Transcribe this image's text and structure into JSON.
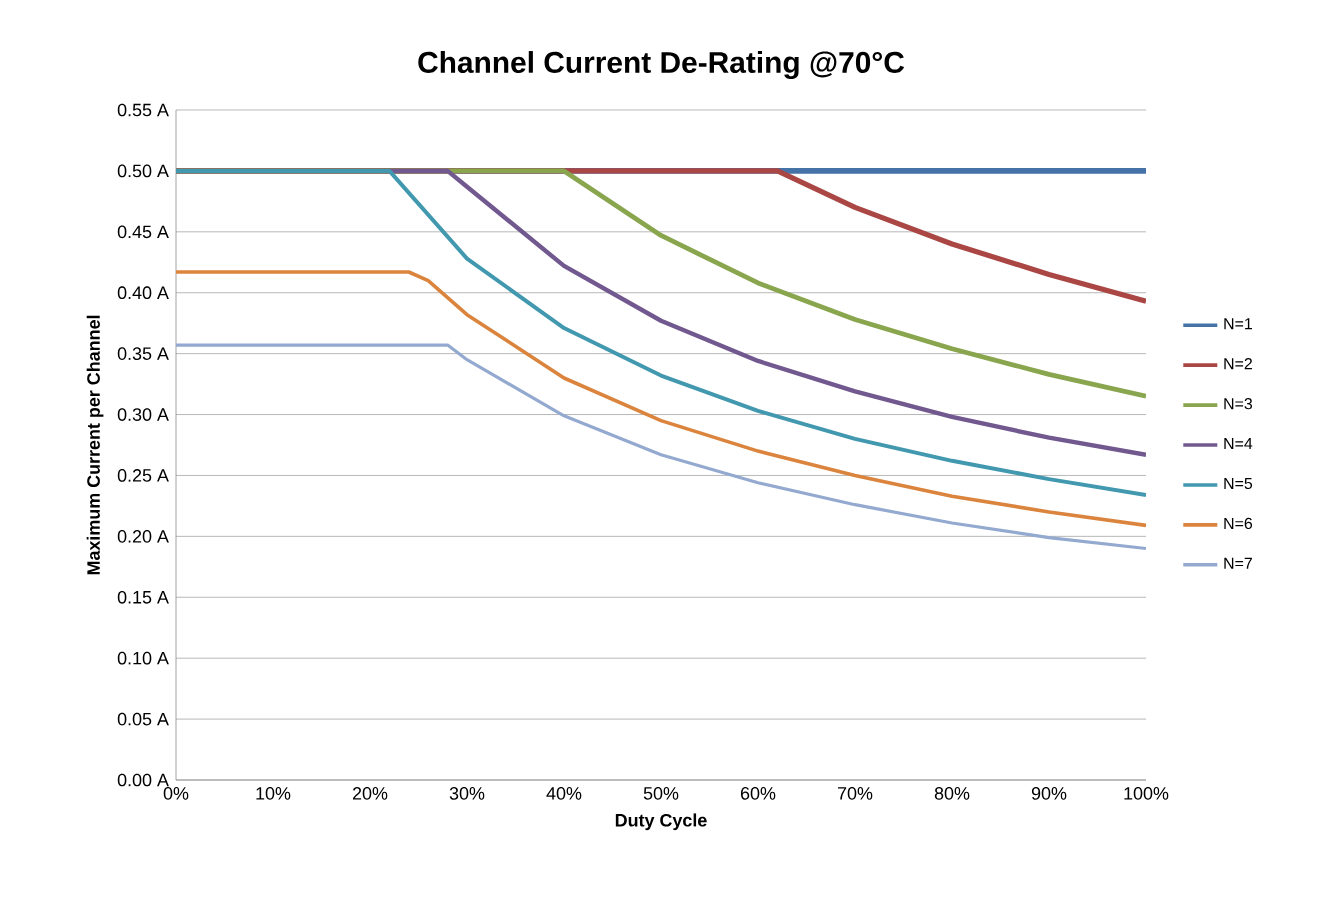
{
  "chart_data": {
    "type": "line",
    "title": "Channel Current De-Rating @70°C",
    "xlabel": "Duty Cycle",
    "ylabel": "Maximum Current per Channel",
    "xlim": [
      0,
      100
    ],
    "ylim": [
      0,
      0.55
    ],
    "xticks": [
      {
        "value": 0,
        "label": "0%"
      },
      {
        "value": 10,
        "label": "10%"
      },
      {
        "value": 20,
        "label": "20%"
      },
      {
        "value": 30,
        "label": "30%"
      },
      {
        "value": 40,
        "label": "40%"
      },
      {
        "value": 50,
        "label": "50%"
      },
      {
        "value": 60,
        "label": "60%"
      },
      {
        "value": 70,
        "label": "70%"
      },
      {
        "value": 80,
        "label": "80%"
      },
      {
        "value": 90,
        "label": "90%"
      },
      {
        "value": 100,
        "label": "100%"
      }
    ],
    "yticks": [
      {
        "value": 0,
        "label": "0.00 A"
      },
      {
        "value": 0.05,
        "label": "0.05 A"
      },
      {
        "value": 0.1,
        "label": "0.10 A"
      },
      {
        "value": 0.15,
        "label": "0.15 A"
      },
      {
        "value": 0.2,
        "label": "0.20 A"
      },
      {
        "value": 0.25,
        "label": "0.25 A"
      },
      {
        "value": 0.3,
        "label": "0.30 A"
      },
      {
        "value": 0.35,
        "label": "0.35 A"
      },
      {
        "value": 0.4,
        "label": "0.40 A"
      },
      {
        "value": 0.45,
        "label": "0.45 A"
      },
      {
        "value": 0.5,
        "label": "0.50 A"
      },
      {
        "value": 0.55,
        "label": "0.55 A"
      }
    ],
    "grid": "y",
    "legend": "right",
    "marker": "none",
    "line_style": "solid",
    "series": [
      {
        "name": "N=1",
        "color": "#4572a7",
        "x": [
          0,
          100
        ],
        "values": [
          0.5,
          0.5
        ]
      },
      {
        "name": "N=2",
        "color": "#aa4643",
        "x": [
          0,
          62,
          70,
          80,
          90,
          100
        ],
        "values": [
          0.5,
          0.5,
          0.47,
          0.44,
          0.415,
          0.393
        ]
      },
      {
        "name": "N=3",
        "color": "#89a54e",
        "x": [
          0,
          40,
          50,
          60,
          70,
          80,
          90,
          100
        ],
        "values": [
          0.5,
          0.5,
          0.447,
          0.408,
          0.378,
          0.354,
          0.333,
          0.315
        ]
      },
      {
        "name": "N=4",
        "color": "#71588f",
        "x": [
          0,
          28,
          30,
          40,
          50,
          60,
          70,
          80,
          90,
          100
        ],
        "values": [
          0.5,
          0.5,
          0.487,
          0.422,
          0.377,
          0.344,
          0.319,
          0.298,
          0.281,
          0.267
        ]
      },
      {
        "name": "N=5",
        "color": "#4198af",
        "x": [
          0,
          22,
          30,
          40,
          50,
          60,
          70,
          80,
          90,
          100
        ],
        "values": [
          0.5,
          0.5,
          0.428,
          0.371,
          0.332,
          0.303,
          0.28,
          0.262,
          0.247,
          0.234
        ]
      },
      {
        "name": "N=6",
        "color": "#db843d",
        "x": [
          0,
          24,
          26,
          30,
          40,
          50,
          60,
          70,
          80,
          90,
          100
        ],
        "values": [
          0.417,
          0.417,
          0.41,
          0.382,
          0.33,
          0.295,
          0.27,
          0.25,
          0.233,
          0.22,
          0.209
        ]
      },
      {
        "name": "N=7",
        "color": "#93a9cf",
        "x": [
          0,
          28,
          30,
          40,
          50,
          60,
          70,
          80,
          90,
          100
        ],
        "values": [
          0.357,
          0.357,
          0.345,
          0.299,
          0.267,
          0.244,
          0.226,
          0.211,
          0.199,
          0.19
        ]
      }
    ]
  }
}
